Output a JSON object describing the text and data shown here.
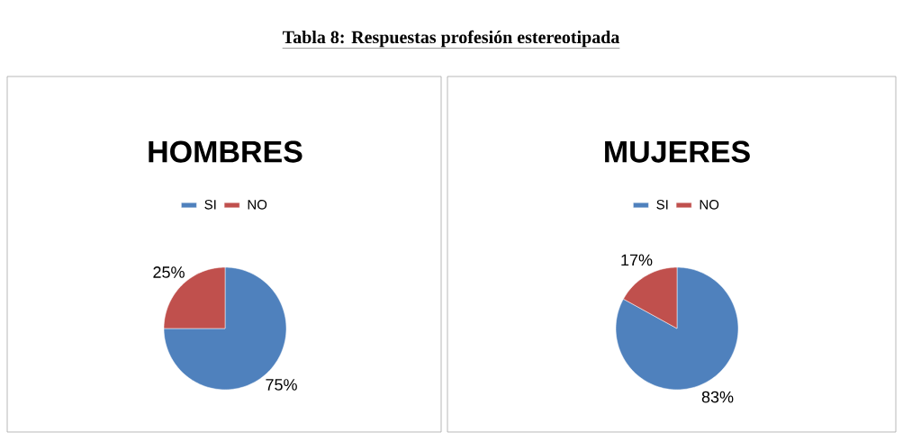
{
  "chart_data": [
    {
      "type": "pie",
      "title": "HOMBRES",
      "annotations": [
        "**Tabla 8: Respuestas profesión estereotipada**"
      ],
      "categories": [
        "SI",
        "NO"
      ],
      "values": [
        75,
        25
      ],
      "colors": [
        "#4f81bd",
        "#c0504d"
      ],
      "value_labels": [
        "75%",
        "25%"
      ],
      "legend": "top"
    },
    {
      "type": "pie",
      "title": "MUJERES",
      "categories": [
        "SI",
        "NO"
      ],
      "values": [
        83,
        17
      ],
      "colors": [
        "#4f81bd",
        "#c0504d"
      ],
      "value_labels": [
        "83%",
        "17%"
      ],
      "legend": "top"
    }
  ]
}
